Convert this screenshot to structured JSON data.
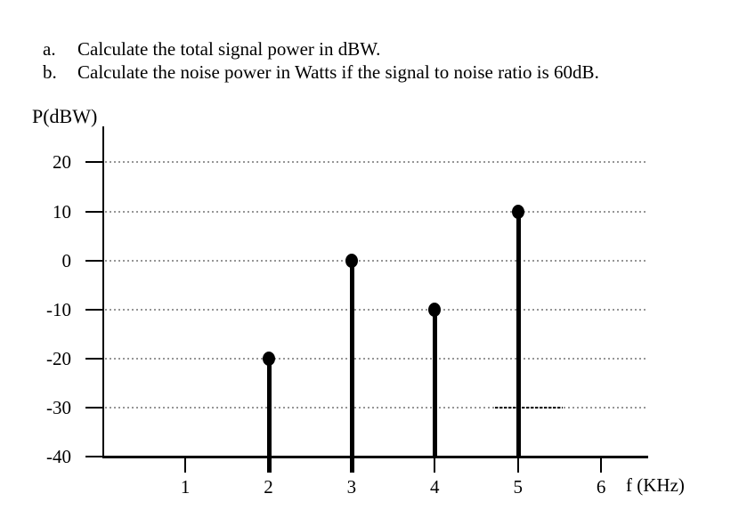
{
  "questions": {
    "items": [
      {
        "marker": "a.",
        "text": "Calculate the total signal power in dBW."
      },
      {
        "marker": "b.",
        "text": "Calculate the noise power in Watts if the signal to noise ratio is 60dB."
      }
    ]
  },
  "chart_data": {
    "type": "stem",
    "title": "",
    "ylabel": "P(dBW)",
    "xlabel": "f (KHz)",
    "x": [
      2,
      3,
      4,
      5
    ],
    "y": [
      -20,
      0,
      -10,
      10
    ],
    "xticks": [
      1,
      2,
      3,
      4,
      5,
      6
    ],
    "yticks": [
      20,
      10,
      0,
      -10,
      -20,
      -30,
      -40
    ],
    "grid_y_values": [
      20,
      10,
      0,
      -10,
      -20,
      -30
    ],
    "grid": "horizontal-dotted",
    "grid_emphasis_segment": {
      "y": -30,
      "x_from": 4.73,
      "x_to": 5.54
    },
    "xlim": [
      0,
      6.55
    ],
    "ylim": [
      -40,
      27
    ],
    "stems_crossing_axis": [
      2,
      3
    ],
    "colors": {
      "stem": "#000000",
      "dot": "#000000",
      "axis": "#000000",
      "grid": "#969696",
      "text": "#000000",
      "background": "#ffffff"
    }
  }
}
